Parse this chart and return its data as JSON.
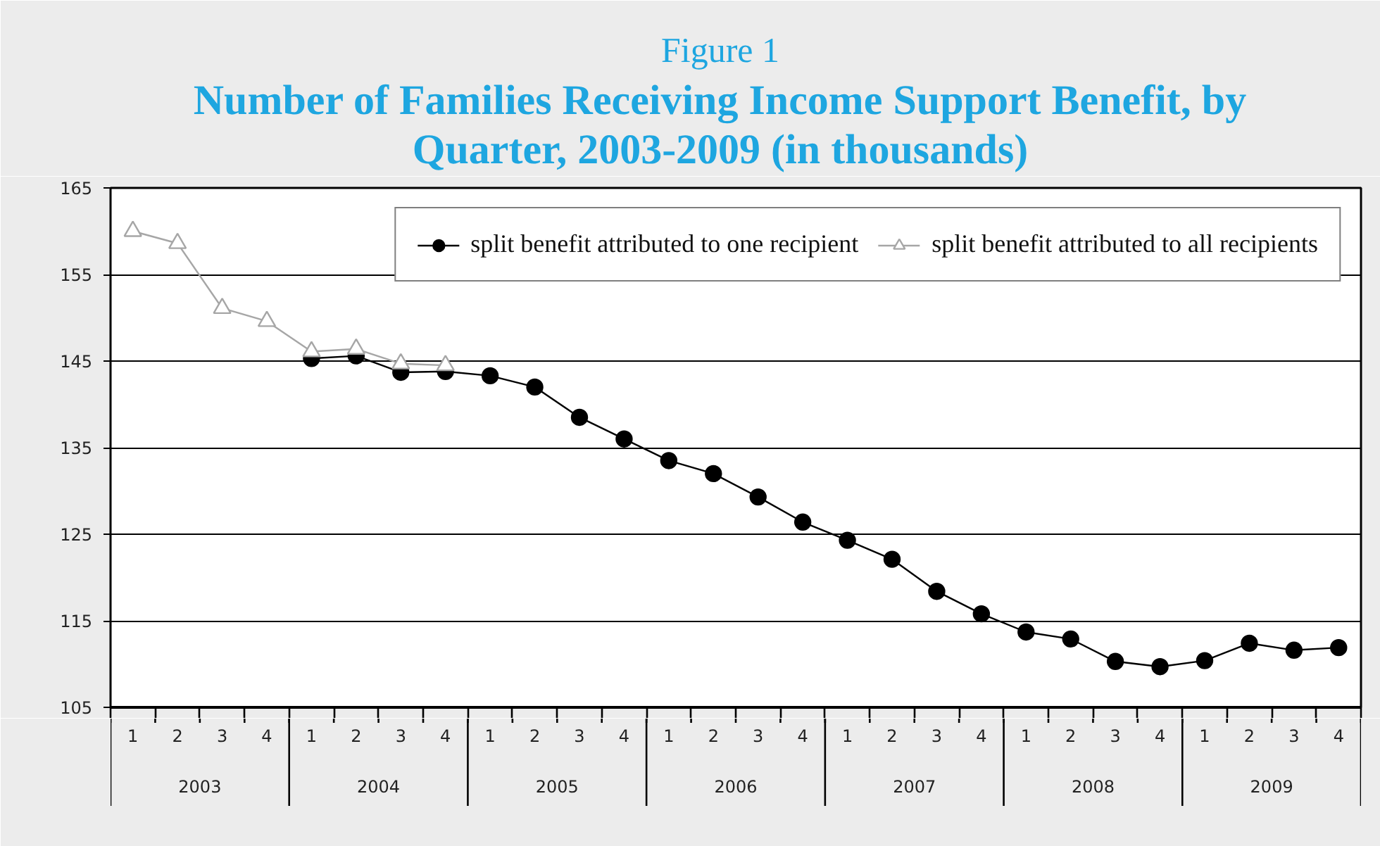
{
  "chart_data": {
    "type": "line",
    "subtitle": "Figure 1",
    "title": "Number of Families Receiving Income Support Benefit, by Quarter, 2003-2009 (in thousands)",
    "categories": [
      "1",
      "2",
      "3",
      "4",
      "1",
      "2",
      "3",
      "4",
      "1",
      "2",
      "3",
      "4",
      "1",
      "2",
      "3",
      "4",
      "1",
      "2",
      "3",
      "4",
      "1",
      "2",
      "3",
      "4",
      "1",
      "2",
      "3",
      "4"
    ],
    "annotations": [
      "2003",
      "2004",
      "2005",
      "2006",
      "2007",
      "2008",
      "2009"
    ],
    "ylim": [
      105,
      165
    ],
    "yticks": [
      105,
      115,
      125,
      135,
      145,
      155,
      165
    ],
    "grid": "y",
    "legend": "top right",
    "series": [
      {
        "name": "split benefit attributed to one recipient",
        "color": "#000000",
        "marker": "circle",
        "values": [
          null,
          null,
          null,
          null,
          145.3,
          145.6,
          143.7,
          143.8,
          143.3,
          142.0,
          138.5,
          136.0,
          133.5,
          132.0,
          129.3,
          126.4,
          124.3,
          122.1,
          118.4,
          115.8,
          113.7,
          112.9,
          110.3,
          109.7,
          110.4,
          112.4,
          111.6,
          111.9
        ]
      },
      {
        "name": "split benefit attributed to all recipients",
        "color": "#a6a6a6",
        "marker": "triangle",
        "values": [
          160.0,
          158.6,
          151.1,
          149.6,
          146.1,
          146.4,
          144.7,
          144.5,
          null,
          null,
          null,
          null,
          null,
          null,
          null,
          null,
          null,
          null,
          null,
          null,
          null,
          null,
          null,
          null,
          null,
          null,
          null,
          null
        ]
      }
    ]
  }
}
